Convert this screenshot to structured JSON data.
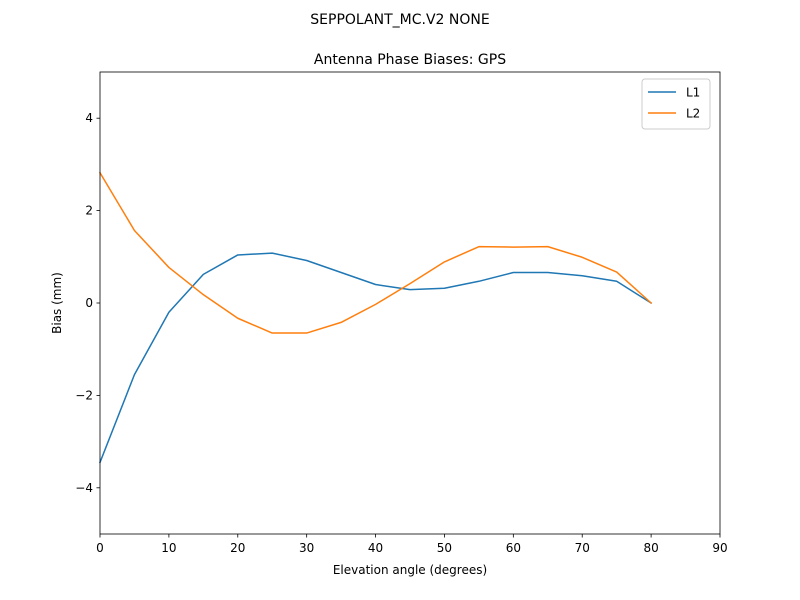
{
  "chart_data": {
    "type": "line",
    "suptitle": "SEPPOLANT_MC.V2 NONE",
    "title": "Antenna Phase Biases: GPS",
    "xlabel": "Elevation angle (degrees)",
    "ylabel": "Bias (mm)",
    "xlim": [
      0,
      90
    ],
    "ylim": [
      -5,
      5
    ],
    "xticks": [
      0,
      10,
      20,
      30,
      40,
      50,
      60,
      70,
      80,
      90
    ],
    "yticks": [
      -4,
      -2,
      0,
      2,
      4
    ],
    "xtick_labels": [
      "0",
      "10",
      "20",
      "30",
      "40",
      "50",
      "60",
      "70",
      "80",
      "90"
    ],
    "ytick_labels": [
      "−4",
      "−2",
      "0",
      "2",
      "4"
    ],
    "grid": false,
    "legend_position": "upper right",
    "x": [
      0,
      5,
      10,
      15,
      20,
      25,
      30,
      35,
      40,
      45,
      50,
      55,
      60,
      65,
      70,
      75,
      80
    ],
    "series": [
      {
        "name": "L1",
        "color": "#1f77b4",
        "values": [
          -3.45,
          -1.55,
          -0.2,
          0.62,
          1.04,
          1.08,
          0.92,
          0.66,
          0.4,
          0.29,
          0.32,
          0.47,
          0.66,
          0.66,
          0.59,
          0.47,
          0.0
        ]
      },
      {
        "name": "L2",
        "color": "#ff7f0e",
        "values": [
          2.82,
          1.57,
          0.77,
          0.18,
          -0.33,
          -0.65,
          -0.65,
          -0.42,
          -0.03,
          0.42,
          0.89,
          1.22,
          1.21,
          1.22,
          0.99,
          0.67,
          0.0
        ]
      }
    ]
  }
}
